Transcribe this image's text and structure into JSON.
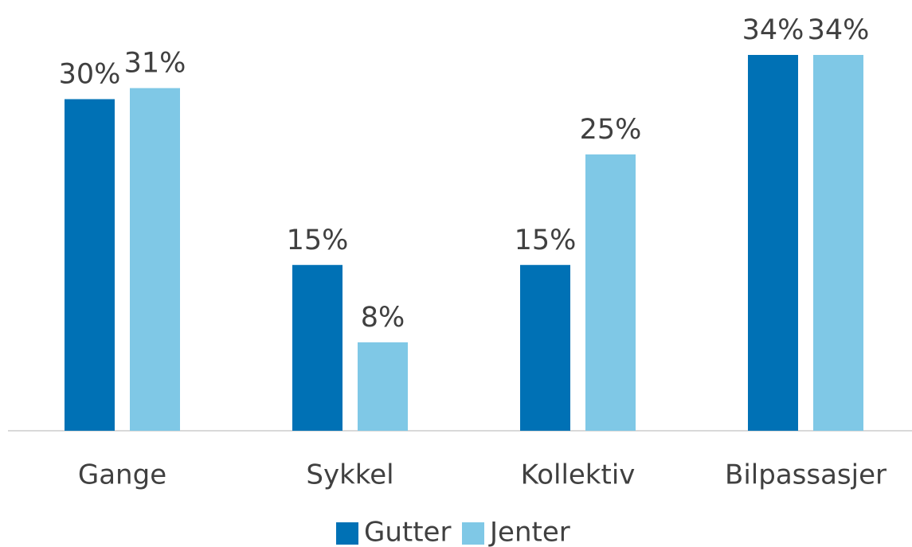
{
  "chart_data": {
    "type": "bar",
    "categories": [
      "Gange",
      "Sykkel",
      "Kollektiv",
      "Bilpassasjer"
    ],
    "series": [
      {
        "name": "Gutter",
        "color": "#0071b5",
        "values": [
          30,
          15,
          15,
          34
        ],
        "value_labels": [
          "30%",
          "15%",
          "15%",
          "34%"
        ]
      },
      {
        "name": "Jenter",
        "color": "#7fc8e6",
        "values": [
          31,
          8,
          25,
          34
        ],
        "value_labels": [
          "31%",
          "8%",
          "25%",
          "34%"
        ]
      }
    ],
    "legend": "bottom"
  }
}
